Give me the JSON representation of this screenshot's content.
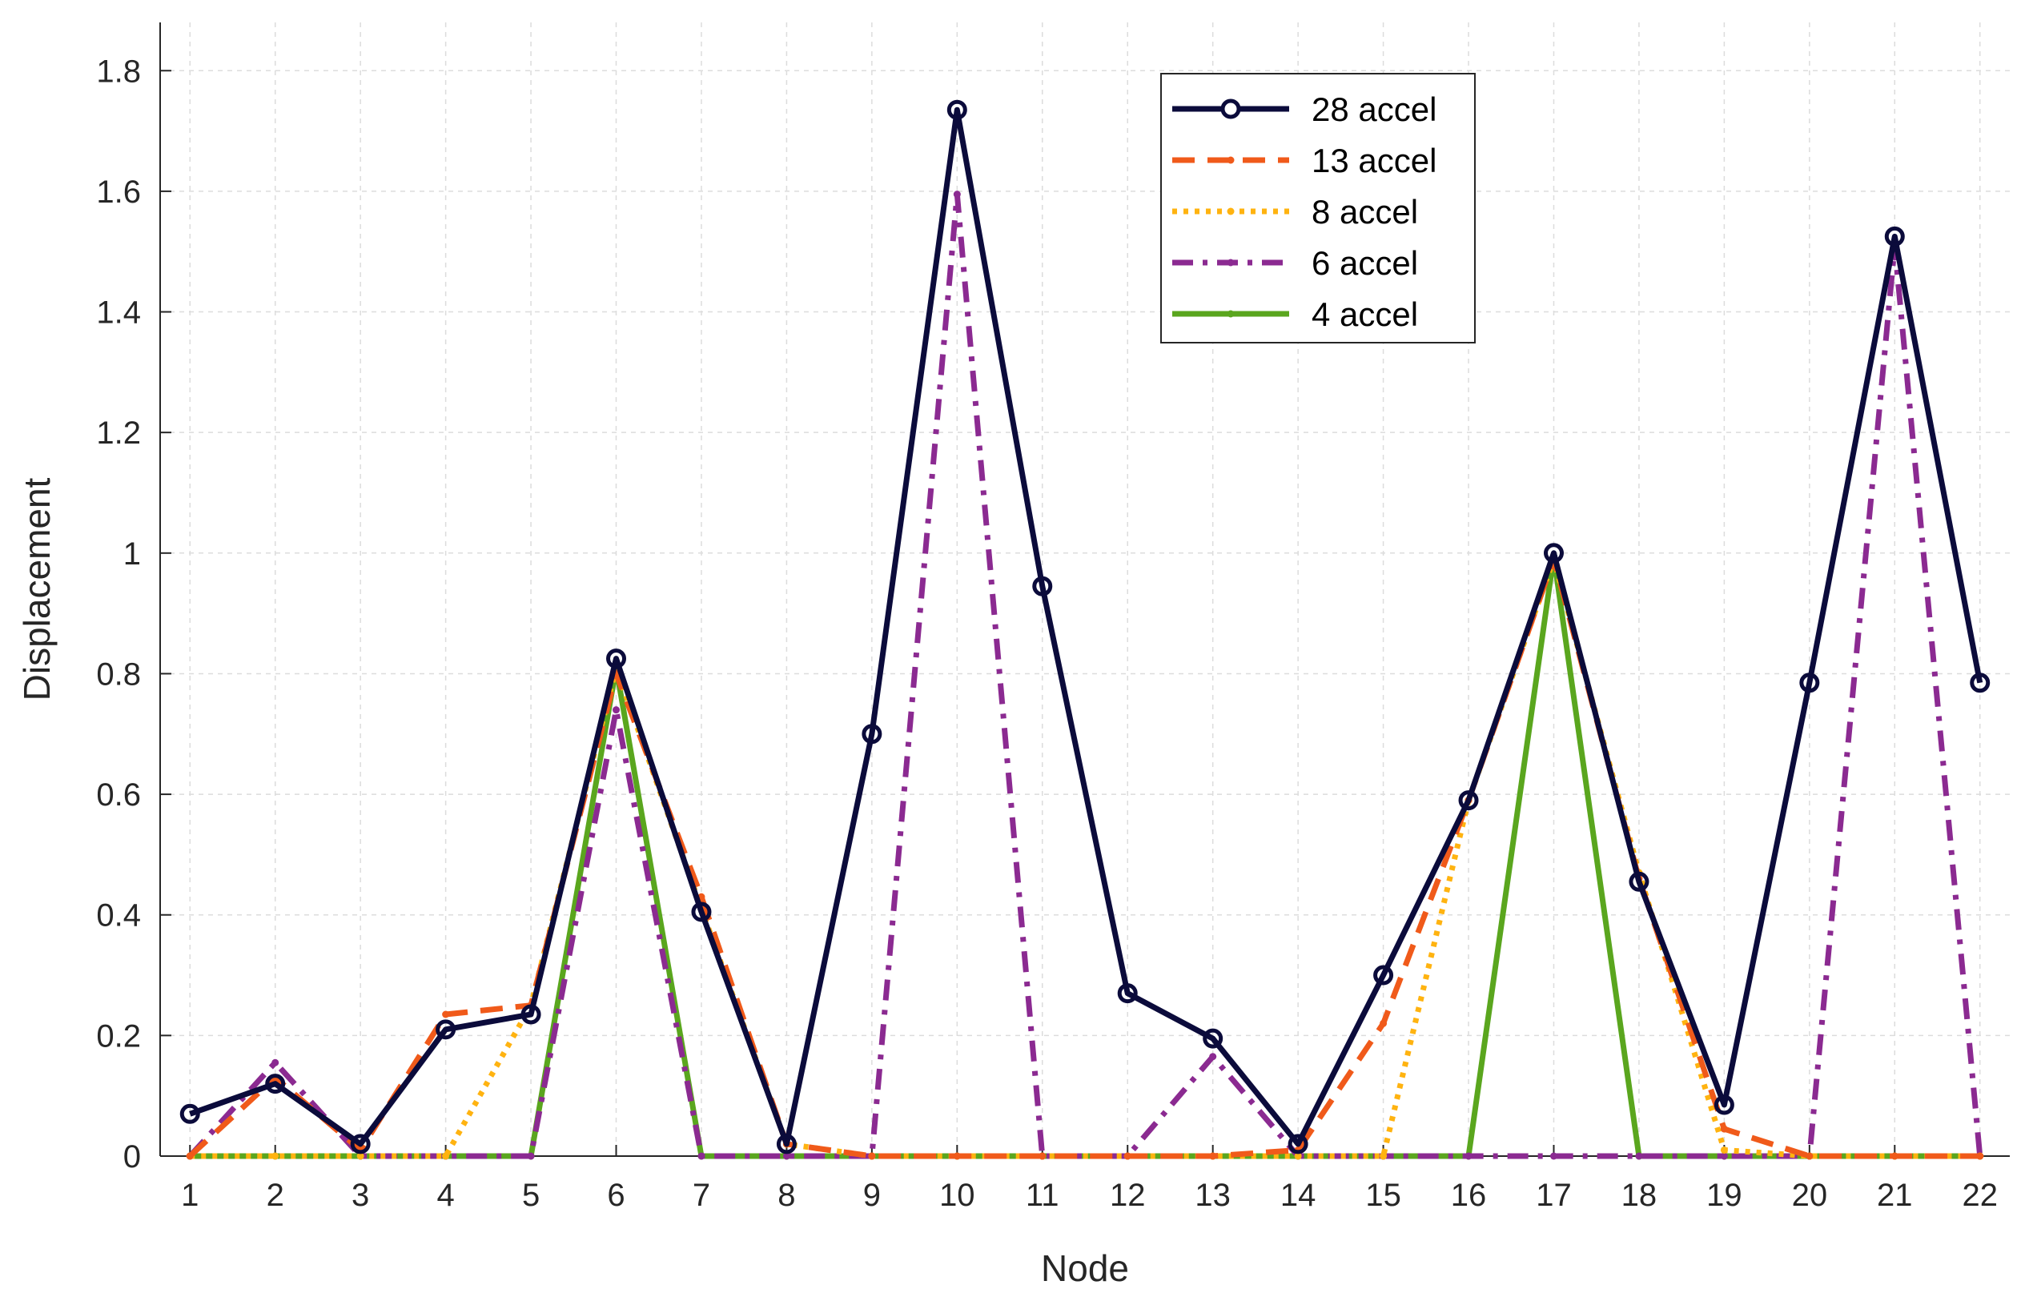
{
  "chart_data": {
    "type": "line",
    "title": "",
    "xlabel": "Node",
    "ylabel": "Displacement",
    "xlim": [
      0.65,
      22.35
    ],
    "ylim": [
      0,
      1.88
    ],
    "x": [
      1,
      2,
      3,
      4,
      5,
      6,
      7,
      8,
      9,
      10,
      11,
      12,
      13,
      14,
      15,
      16,
      17,
      18,
      19,
      20,
      21,
      22
    ],
    "x_ticks": [
      "1",
      "2",
      "3",
      "4",
      "5",
      "6",
      "7",
      "8",
      "9",
      "10",
      "11",
      "12",
      "13",
      "14",
      "15",
      "16",
      "17",
      "18",
      "19",
      "20",
      "21",
      "22"
    ],
    "y_ticks": [
      "0",
      "0.2",
      "0.4",
      "0.6",
      "0.8",
      "1",
      "1.2",
      "1.4",
      "1.6",
      "1.8"
    ],
    "y_tick_values": [
      0,
      0.2,
      0.4,
      0.6,
      0.8,
      1,
      1.2,
      1.4,
      1.6,
      1.8
    ],
    "grid": true,
    "legend_position": "top-center",
    "series": [
      {
        "name": "28 accel",
        "color": "#0b0b3b",
        "dash": "solid",
        "marker": "circle",
        "values": [
          0.07,
          0.12,
          0.02,
          0.21,
          0.235,
          0.825,
          0.405,
          0.02,
          0.7,
          1.735,
          0.945,
          0.27,
          0.195,
          0.02,
          0.3,
          0.59,
          1.0,
          0.455,
          0.085,
          0.785,
          1.525,
          0.785
        ]
      },
      {
        "name": "13 accel",
        "color": "#f05a1a",
        "dash": "dashed",
        "marker": "dot",
        "values": [
          0,
          0.13,
          0.01,
          0.235,
          0.25,
          0.8,
          0.43,
          0.02,
          0,
          0,
          0,
          0,
          0,
          0.01,
          0.22,
          0.59,
          0.99,
          0.46,
          0.045,
          0,
          0,
          0
        ]
      },
      {
        "name": "8 accel",
        "color": "#ffb310",
        "dash": "dotted",
        "marker": "dot",
        "values": [
          0,
          0,
          0,
          0,
          0.25,
          0.81,
          0.41,
          0.02,
          0,
          0,
          0,
          0,
          0,
          0,
          0,
          0.59,
          0.99,
          0.47,
          0.01,
          0,
          0,
          0
        ]
      },
      {
        "name": "6 accel",
        "color": "#8b2a91",
        "dash": "dashdot",
        "marker": "dot",
        "values": [
          0,
          0.155,
          0,
          0,
          0,
          0.74,
          0,
          0,
          0,
          1.595,
          0,
          0,
          0.165,
          0,
          0,
          0,
          0,
          0,
          0,
          0,
          1.51,
          0
        ]
      },
      {
        "name": "4 accel",
        "color": "#5aa61e",
        "dash": "solid",
        "marker": "dot",
        "values": [
          0,
          0,
          0,
          0,
          0,
          0.81,
          0,
          0,
          0,
          0,
          0,
          0,
          0,
          0,
          0,
          0,
          0.995,
          0,
          0,
          0,
          0,
          0
        ]
      }
    ]
  }
}
